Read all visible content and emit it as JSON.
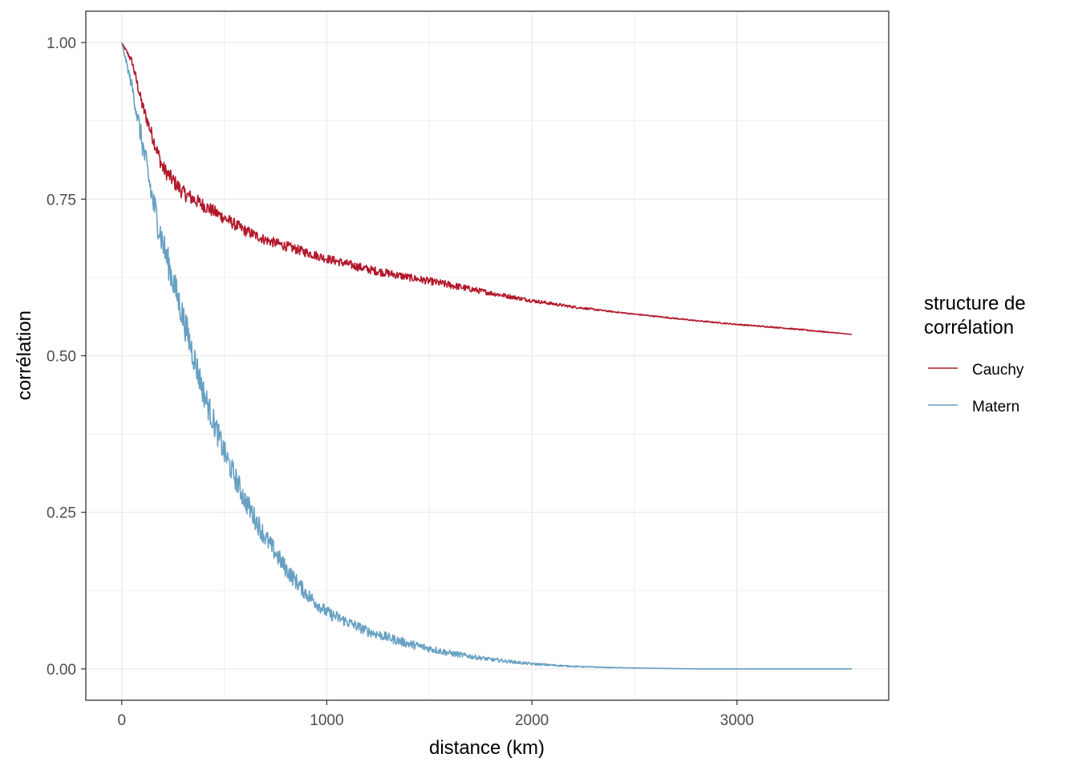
{
  "chart_data": {
    "type": "line",
    "title": "",
    "xlabel": "distance (km)",
    "ylabel": "corrélation",
    "xlim": [
      -175,
      3740
    ],
    "ylim": [
      -0.05,
      1.05
    ],
    "x_ticks": [
      0,
      1000,
      2000,
      3000
    ],
    "x_tick_labels": [
      "0",
      "1000",
      "2000",
      "3000"
    ],
    "y_ticks": [
      0,
      0.25,
      0.5,
      0.75,
      1
    ],
    "y_tick_labels": [
      "0.00",
      "0.25",
      "0.50",
      "0.75",
      "1.00"
    ],
    "grid": true,
    "legend": {
      "title_lines": [
        "structure de",
        "corrélation"
      ],
      "placement": "right"
    },
    "series": [
      {
        "name": "Cauchy",
        "color": "#b2182b",
        "x": [
          0,
          50,
          100,
          200,
          300,
          400,
          500,
          600,
          700,
          800,
          1000,
          1200,
          1400,
          1600,
          1800,
          2000,
          2200,
          2400,
          2600,
          2800,
          3000,
          3200,
          3400,
          3560
        ],
        "y": [
          1.0,
          0.97,
          0.9,
          0.8,
          0.76,
          0.74,
          0.72,
          0.7,
          0.685,
          0.675,
          0.655,
          0.638,
          0.625,
          0.613,
          0.6,
          0.588,
          0.578,
          0.57,
          0.563,
          0.556,
          0.55,
          0.545,
          0.539,
          0.534
        ],
        "noise": [
          0,
          0.006,
          0.01,
          0.012,
          0.012,
          0.011,
          0.01,
          0.009,
          0.008,
          0.008,
          0.007,
          0.007,
          0.006,
          0.006,
          0.004,
          0.003,
          0.002,
          0.001,
          0.001,
          0.001,
          0.001,
          0.001,
          0.001,
          0.0
        ]
      },
      {
        "name": "Matern",
        "color": "#67a0c2",
        "x": [
          0,
          50,
          100,
          150,
          200,
          300,
          400,
          500,
          600,
          700,
          800,
          900,
          1000,
          1200,
          1400,
          1600,
          1800,
          2000,
          2200,
          2400,
          2600,
          2800,
          3000,
          3200,
          3400,
          3560
        ],
        "y": [
          1.0,
          0.93,
          0.84,
          0.75,
          0.68,
          0.56,
          0.44,
          0.345,
          0.27,
          0.21,
          0.16,
          0.12,
          0.09,
          0.06,
          0.04,
          0.025,
          0.015,
          0.008,
          0.004,
          0.002,
          0.001,
          0.0,
          0.0,
          0.0,
          0.0,
          0.0
        ],
        "noise": [
          0,
          0.01,
          0.02,
          0.025,
          0.025,
          0.025,
          0.022,
          0.02,
          0.018,
          0.016,
          0.014,
          0.012,
          0.01,
          0.008,
          0.007,
          0.005,
          0.003,
          0.002,
          0.001,
          0.0005,
          0.0,
          0.0,
          0.0,
          0.0,
          0.0,
          0.0
        ]
      }
    ]
  }
}
